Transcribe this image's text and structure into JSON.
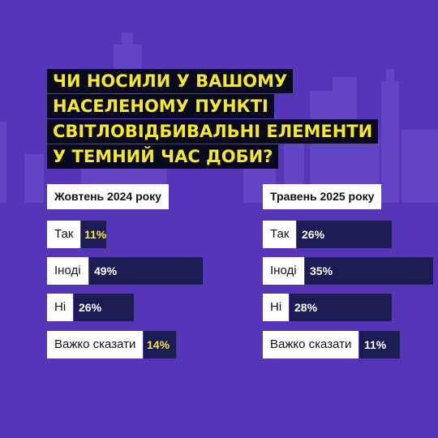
{
  "title_lines": [
    "ЧИ НОСИЛИ У ВАШОМУ",
    "НАСЕЛЕНОМУ ПУНКТІ",
    "СВІТЛОВІДБИВАЛЬНІ ЕЛЕМЕНТИ",
    "У ТЕМНИЙ ЧАС ДОБИ?"
  ],
  "colors": {
    "background": "#5535b8",
    "skyline": "#6245c2",
    "bar": "#1c1c54",
    "value_inside": "#ffffff",
    "value_outside": "#f5e535",
    "title_text": "#f5e535",
    "title_bg": "#0a0a1e"
  },
  "chart_data": [
    {
      "type": "bar",
      "orientation": "horizontal",
      "title": "Жовтень 2024 року",
      "categories": [
        "Так",
        "Іноді",
        "Ні",
        "Важко сказати"
      ],
      "values": [
        11,
        49,
        26,
        14
      ],
      "value_labels": [
        "11%",
        "49%",
        "26%",
        "14%"
      ],
      "unit": "%"
    },
    {
      "type": "bar",
      "orientation": "horizontal",
      "title": "Травень 2025 року",
      "categories": [
        "Так",
        "Іноді",
        "Ні",
        "Важко сказати"
      ],
      "values": [
        26,
        35,
        28,
        11
      ],
      "value_labels": [
        "26%",
        "35%",
        "28%",
        "11%"
      ],
      "unit": "%"
    }
  ]
}
